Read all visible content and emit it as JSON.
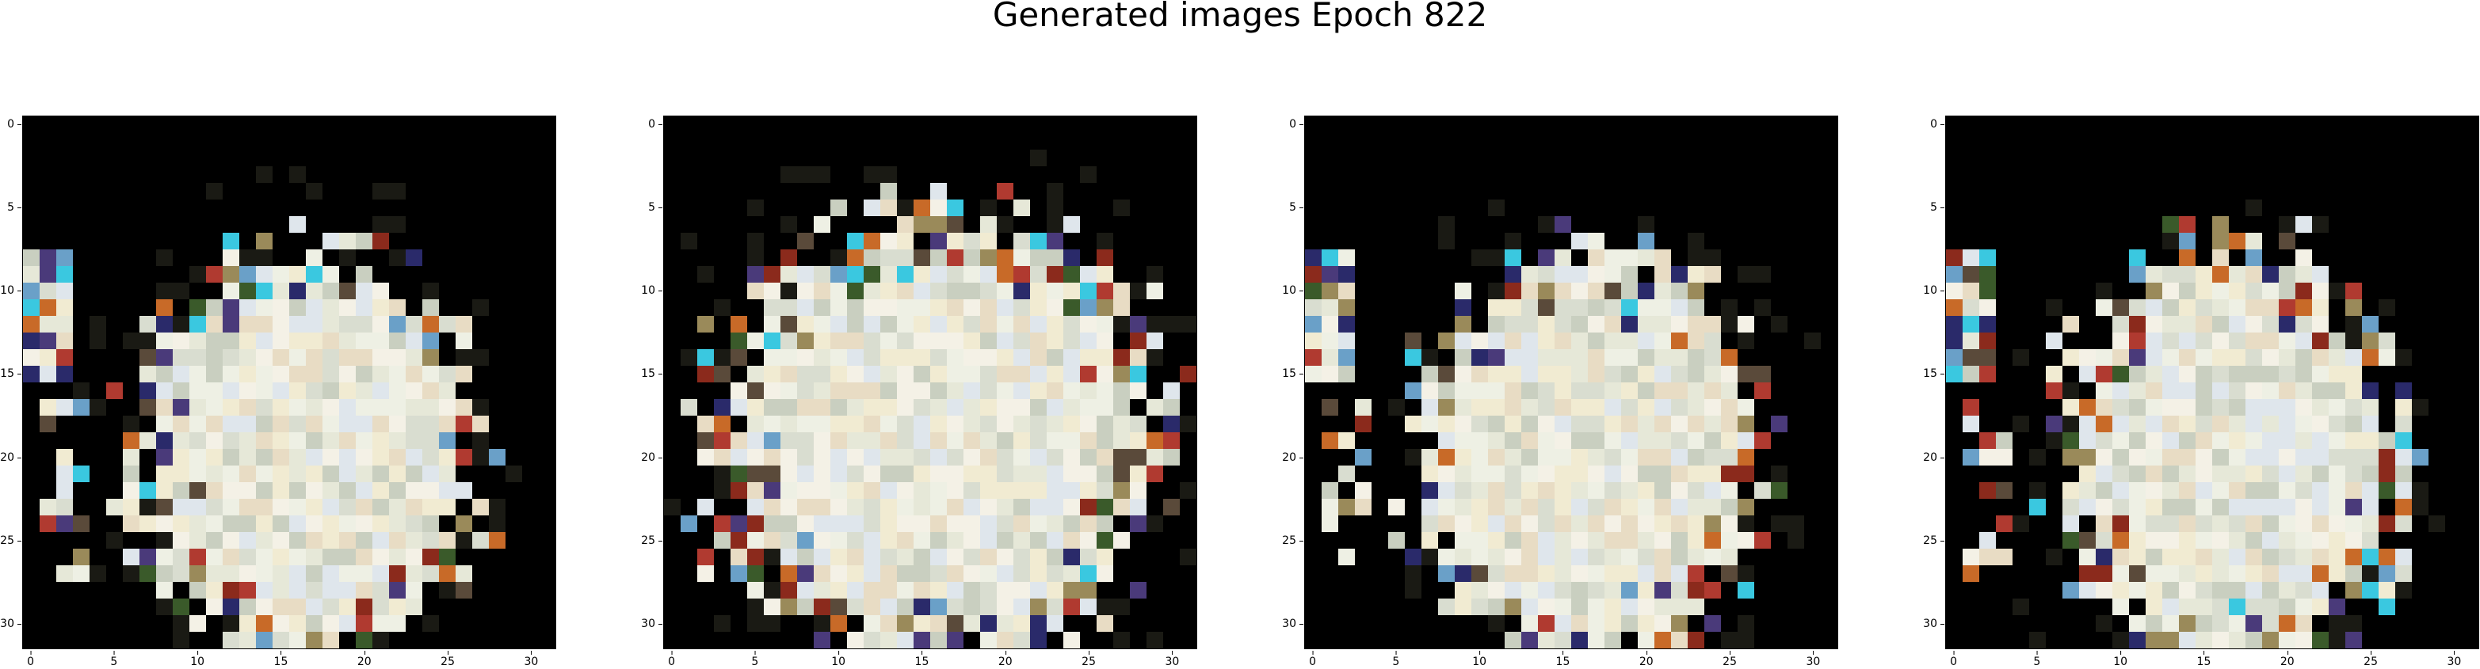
{
  "title": "Generated images Epoch 822",
  "images": [
    {
      "name": "generated-image-1"
    },
    {
      "name": "generated-image-2"
    },
    {
      "name": "generated-image-3"
    },
    {
      "name": "generated-image-4"
    }
  ],
  "axis": {
    "x_ticks": [
      "0",
      "5",
      "10",
      "15",
      "20",
      "25",
      "30"
    ],
    "y_ticks": [
      "0",
      "5",
      "10",
      "15",
      "20",
      "25",
      "30"
    ],
    "range": [
      -0.5,
      31.5
    ],
    "grid_size": 32
  },
  "colors": {
    "background": "#000000",
    "pixel_tones": [
      "#eef0e4",
      "#e6e8d8",
      "#dfe6ec",
      "#f1ebd2",
      "#d9ddd0",
      "#c9cfc0",
      "#f4f1e6",
      "#e8dcc4"
    ],
    "accent_tones": [
      "#8b2a1c",
      "#3a5a2a",
      "#4a3a7a",
      "#c86a28",
      "#6aa0c8",
      "#5a4a3a",
      "#2a2a6a",
      "#9a8a5a",
      "#b03a30",
      "#3ac8e0"
    ]
  }
}
